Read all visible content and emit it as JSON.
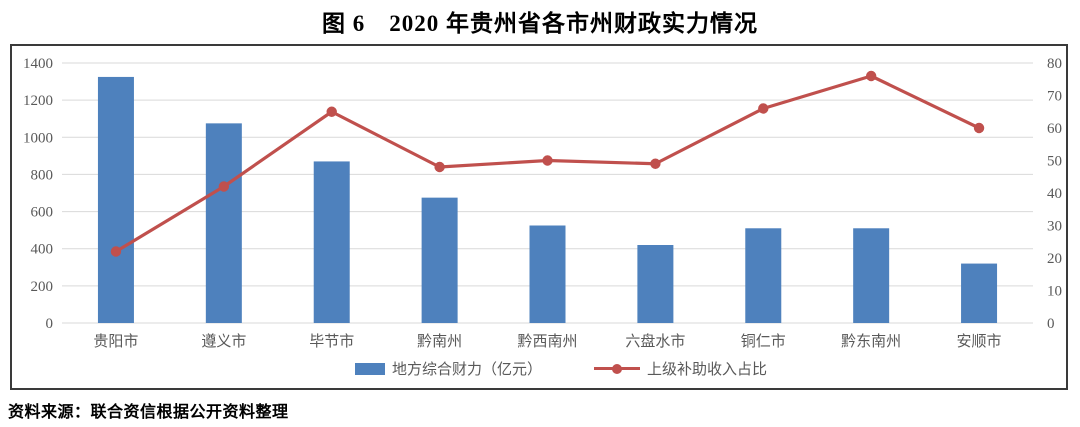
{
  "title": "图 6　2020 年贵州省各市州财政实力情况",
  "source_note": "资料来源：联合资信根据公开资料整理",
  "colors": {
    "bar": "#4e81bd",
    "line": "#c0504d",
    "grid": "#d9d9d9",
    "axis_text": "#595959",
    "border": "#3a3a3a",
    "title_text": "#000000"
  },
  "legend": {
    "bar_label": "地方综合财力（亿元）",
    "line_label": "上级补助收入占比"
  },
  "chart_data": {
    "type": "bar",
    "subtype": "combo-bar-line-dual-axis",
    "title": "图 6　2020 年贵州省各市州财政实力情况",
    "categories": [
      "贵阳市",
      "遵义市",
      "毕节市",
      "黔南州",
      "黔西南州",
      "六盘水市",
      "铜仁市",
      "黔东南州",
      "安顺市"
    ],
    "series": [
      {
        "name": "地方综合财力（亿元）",
        "type": "bar",
        "axis": "left",
        "values": [
          1325,
          1075,
          870,
          675,
          525,
          420,
          510,
          510,
          320
        ]
      },
      {
        "name": "上级补助收入占比",
        "type": "line",
        "axis": "right",
        "values": [
          22,
          42,
          65,
          48,
          50,
          49,
          66,
          76,
          60
        ]
      }
    ],
    "left_axis": {
      "min": 0,
      "max": 1400,
      "step": 200,
      "tick_labels": [
        "0",
        "200",
        "400",
        "600",
        "800",
        "1000",
        "1200",
        "1400"
      ]
    },
    "right_axis": {
      "min": 0,
      "max": 80,
      "step": 10,
      "tick_labels": [
        "0",
        "10",
        "20",
        "30",
        "40",
        "50",
        "60",
        "70",
        "80"
      ]
    },
    "grid": true,
    "legend_position": "bottom"
  }
}
